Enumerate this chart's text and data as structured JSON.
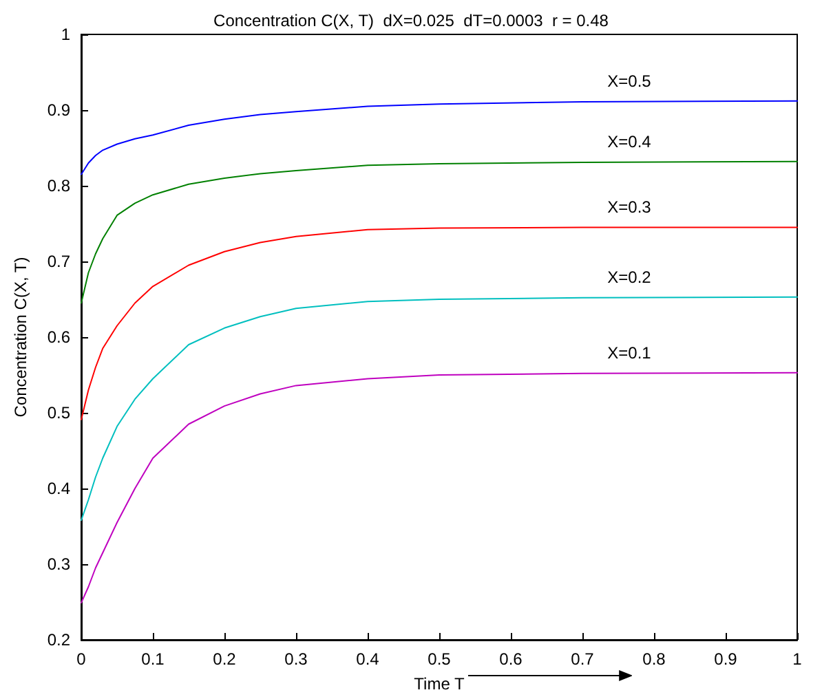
{
  "chart_data": {
    "type": "line",
    "title": "Concentration C(X, T)  dX=0.025  dT=0.0003  r = 0.48",
    "xlabel": "Time T",
    "ylabel": "Concentration C(X, T)",
    "x": [
      0,
      0.01,
      0.02,
      0.03,
      0.05,
      0.075,
      0.1,
      0.15,
      0.2,
      0.25,
      0.3,
      0.4,
      0.5,
      0.7,
      1
    ],
    "series": [
      {
        "name": "X=0.5",
        "color": "#0000ff",
        "values": [
          0.815,
          0.83,
          0.84,
          0.847,
          0.855,
          0.862,
          0.867,
          0.88,
          0.888,
          0.894,
          0.898,
          0.905,
          0.908,
          0.911,
          0.912
        ]
      },
      {
        "name": "X=0.4",
        "color": "#008000",
        "values": [
          0.645,
          0.685,
          0.71,
          0.73,
          0.761,
          0.777,
          0.788,
          0.802,
          0.81,
          0.816,
          0.82,
          0.827,
          0.829,
          0.831,
          0.832
        ]
      },
      {
        "name": "X=0.3",
        "color": "#ff0000",
        "values": [
          0.491,
          0.53,
          0.56,
          0.585,
          0.615,
          0.645,
          0.667,
          0.695,
          0.713,
          0.725,
          0.733,
          0.742,
          0.744,
          0.745,
          0.745
        ]
      },
      {
        "name": "X=0.2",
        "color": "#00bfbf",
        "values": [
          0.358,
          0.385,
          0.415,
          0.44,
          0.482,
          0.518,
          0.545,
          0.59,
          0.612,
          0.627,
          0.638,
          0.647,
          0.65,
          0.652,
          0.653
        ]
      },
      {
        "name": "X=0.1",
        "color": "#bf00bf",
        "values": [
          0.249,
          0.27,
          0.295,
          0.315,
          0.355,
          0.4,
          0.44,
          0.485,
          0.509,
          0.525,
          0.536,
          0.545,
          0.55,
          0.552,
          0.553
        ]
      }
    ],
    "xlim": [
      0,
      1
    ],
    "xticks": [
      0,
      0.1,
      0.2,
      0.3,
      0.4,
      0.5,
      0.6,
      0.7,
      0.8,
      0.9,
      1
    ],
    "ylim": [
      0.2,
      1
    ],
    "yticks": [
      0.2,
      0.3,
      0.4,
      0.5,
      0.6,
      0.7,
      0.8,
      0.9,
      1
    ],
    "grid": false,
    "marker": "none",
    "line_style": "solid"
  }
}
